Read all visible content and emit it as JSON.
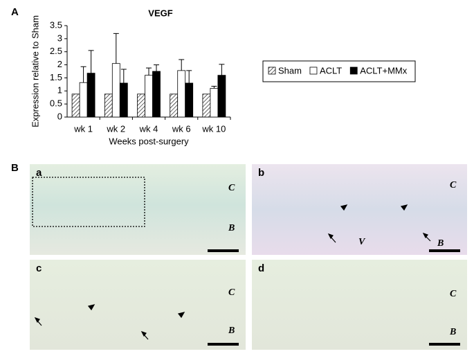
{
  "chart_data": {
    "type": "bar",
    "title": "VEGF",
    "x_label": "Weeks post-surgery",
    "y_label": "Expression relative to Sham",
    "categories": [
      "wk 1",
      "wk 2",
      "wk 4",
      "wk 6",
      "wk 10"
    ],
    "series": [
      {
        "name": "Sham",
        "color": "#ffffff",
        "hatch": true,
        "values": [
          0.88,
          0.88,
          0.88,
          0.88,
          0.88
        ]
      },
      {
        "name": "ACLT",
        "color": "#ffffff",
        "values": [
          1.32,
          2.05,
          1.6,
          1.78,
          1.1
        ],
        "errors": [
          0.61,
          1.15,
          0.28,
          0.42,
          0.08
        ]
      },
      {
        "name": "ACLT+MMx",
        "color": "#000000",
        "values": [
          1.68,
          1.3,
          1.75,
          1.3,
          1.6
        ],
        "errors": [
          0.87,
          0.53,
          0.25,
          0.48,
          0.42
        ]
      }
    ],
    "ylim": [
      0,
      3.5
    ],
    "yticks": [
      0,
      0.5,
      1,
      1.5,
      2,
      2.5,
      3,
      3.5
    ],
    "grid": false
  },
  "figure": {
    "panel_labels": [
      "A",
      "B"
    ],
    "micrographs": [
      {
        "label": "a",
        "annotations": [
          "C",
          "B"
        ]
      },
      {
        "label": "b",
        "annotations": [
          "C",
          "V",
          "B"
        ]
      },
      {
        "label": "c",
        "annotations": [
          "C",
          "B"
        ]
      },
      {
        "label": "d",
        "annotations": [
          "C",
          "B"
        ]
      }
    ]
  }
}
